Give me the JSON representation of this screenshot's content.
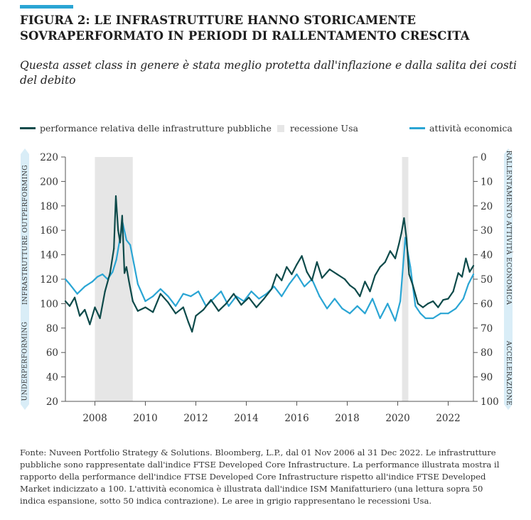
{
  "figure": {
    "title": "FIGURA 2: LE INFRASTRUTTURE HANNO STORICAMENTE SOVRAPERFORMATO IN PERIODI DI RALLENTAMENTO CRESCITA",
    "subtitle": "Questa asset class in genere è stata meglio protetta dall'inflazione e dalla salita dei costi del debito",
    "source": "Fonte: Nuveen Portfolio Strategy & Solutions. Bloomberg, L.P., dal 01 Nov 2006 al 31 Dec 2022. Le infrastrutture pubbliche sono rappresentate dall'indice FTSE Developed Core Infrastructure. La performance illustrata mostra il rapporto della performance dell'indice FTSE Developed Core Infrastructure rispetto all'indice  FTSE Developed Market indicizzato a 100. L'attività economica è illustrata dall'indice ISM Manifatturiero (una lettura sopra 50 indica espansione, sotto 50 indica contrazione). Le aree in grigio rappresentano le recessioni Usa.",
    "accent_color": "#2aa5d4"
  },
  "chart_data": {
    "type": "line",
    "legend": {
      "placement": "top",
      "entries": [
        {
          "label": "performance relativa delle infrastrutture pubbliche",
          "color": "#0d4a4a",
          "kind": "line"
        },
        {
          "label": "recessione Usa",
          "color": "#e6e6e6",
          "kind": "area"
        },
        {
          "label": "attività economica",
          "color": "#2aa5d4",
          "kind": "line"
        }
      ]
    },
    "x_axis": {
      "range": [
        2006.83,
        2023.0
      ],
      "ticks": [
        2008,
        2010,
        2012,
        2014,
        2016,
        2018,
        2020,
        2022
      ],
      "tick_labels": [
        "2008",
        "2010",
        "2012",
        "2014",
        "2016",
        "2018",
        "2020",
        "2022"
      ]
    },
    "y_left": {
      "range": [
        20,
        220
      ],
      "ticks": [
        20,
        40,
        60,
        80,
        100,
        120,
        140,
        160,
        180,
        200,
        220
      ],
      "tick_labels": [
        "20",
        "40",
        "60",
        "80",
        "100",
        "120",
        "140",
        "160",
        "180",
        "200",
        "220"
      ],
      "top_label": "INFRASTRUTTURE  OUTPERFORMING",
      "bottom_label": "UNDERPERFORMING"
    },
    "y_right": {
      "range": [
        0,
        100
      ],
      "inverted": true,
      "ticks": [
        0,
        10,
        20,
        30,
        40,
        50,
        60,
        70,
        80,
        90,
        100
      ],
      "tick_labels": [
        "0",
        "10",
        "20",
        "30",
        "40",
        "50",
        "60",
        "70",
        "80",
        "90",
        "100"
      ],
      "top_label": "RALLENTAMENTO  ATTIVITÀ ECONOMICA",
      "bottom_label": "ACCELERAZIONE"
    },
    "recessions": [
      [
        2008.0,
        2009.5
      ],
      [
        2020.17,
        2020.42
      ]
    ],
    "grid": false,
    "series": [
      {
        "name": "performance relativa delle infrastrutture pubbliche",
        "axis": "left",
        "color": "#0d4a4a",
        "x": [
          2006.83,
          2007.0,
          2007.2,
          2007.4,
          2007.6,
          2007.8,
          2008.0,
          2008.2,
          2008.4,
          2008.6,
          2008.75,
          2008.83,
          2008.92,
          2009.0,
          2009.08,
          2009.17,
          2009.25,
          2009.35,
          2009.5,
          2009.7,
          2010.0,
          2010.3,
          2010.6,
          2010.9,
          2011.2,
          2011.5,
          2011.7,
          2011.85,
          2012.0,
          2012.3,
          2012.6,
          2012.9,
          2013.2,
          2013.5,
          2013.8,
          2014.1,
          2014.4,
          2014.7,
          2015.0,
          2015.2,
          2015.4,
          2015.6,
          2015.8,
          2016.0,
          2016.2,
          2016.4,
          2016.6,
          2016.8,
          2017.0,
          2017.3,
          2017.6,
          2017.9,
          2018.1,
          2018.3,
          2018.5,
          2018.7,
          2018.9,
          2019.1,
          2019.3,
          2019.5,
          2019.7,
          2019.9,
          2020.05,
          2020.15,
          2020.25,
          2020.35,
          2020.45,
          2020.6,
          2020.8,
          2021.0,
          2021.2,
          2021.4,
          2021.6,
          2021.8,
          2022.0,
          2022.2,
          2022.4,
          2022.55,
          2022.7,
          2022.85,
          2023.0
        ],
        "y": [
          102,
          98,
          105,
          90,
          95,
          83,
          97,
          88,
          110,
          125,
          145,
          188,
          160,
          150,
          172,
          125,
          130,
          118,
          102,
          94,
          97,
          93,
          108,
          101,
          92,
          97,
          85,
          77,
          90,
          95,
          103,
          94,
          100,
          108,
          99,
          105,
          97,
          104,
          112,
          124,
          119,
          130,
          124,
          132,
          139,
          126,
          119,
          134,
          121,
          128,
          124,
          120,
          115,
          112,
          106,
          118,
          110,
          123,
          130,
          134,
          143,
          137,
          149,
          158,
          170,
          153,
          124,
          115,
          100,
          97,
          100,
          102,
          97,
          103,
          104,
          110,
          125,
          122,
          137,
          126,
          131
        ]
      },
      {
        "name": "attività economica",
        "axis": "right",
        "color": "#2aa5d4",
        "x": [
          2006.83,
          2007.0,
          2007.3,
          2007.6,
          2007.9,
          2008.1,
          2008.3,
          2008.5,
          2008.7,
          2008.85,
          2009.0,
          2009.1,
          2009.25,
          2009.4,
          2009.55,
          2009.7,
          2010.0,
          2010.3,
          2010.6,
          2010.9,
          2011.2,
          2011.5,
          2011.8,
          2012.1,
          2012.4,
          2012.7,
          2013.0,
          2013.3,
          2013.6,
          2013.9,
          2014.2,
          2014.5,
          2014.8,
          2015.1,
          2015.4,
          2015.7,
          2016.0,
          2016.3,
          2016.6,
          2016.9,
          2017.2,
          2017.5,
          2017.8,
          2018.1,
          2018.4,
          2018.7,
          2019.0,
          2019.3,
          2019.6,
          2019.9,
          2020.1,
          2020.3,
          2020.5,
          2020.7,
          2020.9,
          2021.1,
          2021.4,
          2021.7,
          2022.0,
          2022.3,
          2022.6,
          2022.8,
          2023.0
        ],
        "y": [
          50,
          52,
          56,
          53,
          51,
          49,
          48,
          50,
          47,
          42,
          33,
          27,
          34,
          36,
          44,
          52,
          59,
          57,
          54,
          57,
          61,
          56,
          57,
          55,
          61,
          58,
          55,
          61,
          57,
          59,
          55,
          58,
          56,
          53,
          57,
          52,
          48,
          53,
          50,
          57,
          62,
          58,
          62,
          64,
          61,
          64,
          58,
          66,
          60,
          67,
          59,
          33,
          45,
          61,
          64,
          66,
          66,
          64,
          64,
          62,
          58,
          52,
          48
        ]
      }
    ]
  }
}
